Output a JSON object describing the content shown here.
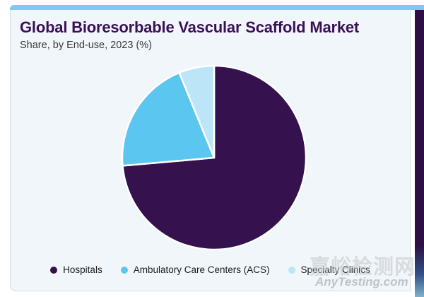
{
  "header": {
    "title": "Global Bioresorbable Vascular Scaffold Market",
    "subtitle": "Share, by End-use, 2023 (%)"
  },
  "chart_data": {
    "type": "pie",
    "title": "Global Bioresorbable Vascular Scaffold Market",
    "subtitle": "Share, by End-use, 2023 (%)",
    "unit": "%",
    "labels": [
      "Hospitals",
      "Ambulatory Care Centers (ACS)",
      "Specialty Clinics"
    ],
    "values": [
      73.6,
      20.2,
      6.2
    ],
    "colors": [
      "#35114d",
      "#5bc6f0",
      "#bce5f8"
    ],
    "start_angle_deg": 0,
    "direction": "clockwise",
    "slice_gap_stroke": "#ffffff",
    "legend_position": "bottom"
  },
  "watermark": {
    "cn": "嘉峪检测网",
    "en": "AnyTesting.com"
  },
  "theme": {
    "accent_bar": "#7fc9ec",
    "card_bg": "#f1f6fa",
    "card_border": "#d3dde3",
    "title_color": "#3a1155",
    "right_strip_top": "#2d0f45",
    "right_strip_bottom": "#7fb3ca"
  }
}
